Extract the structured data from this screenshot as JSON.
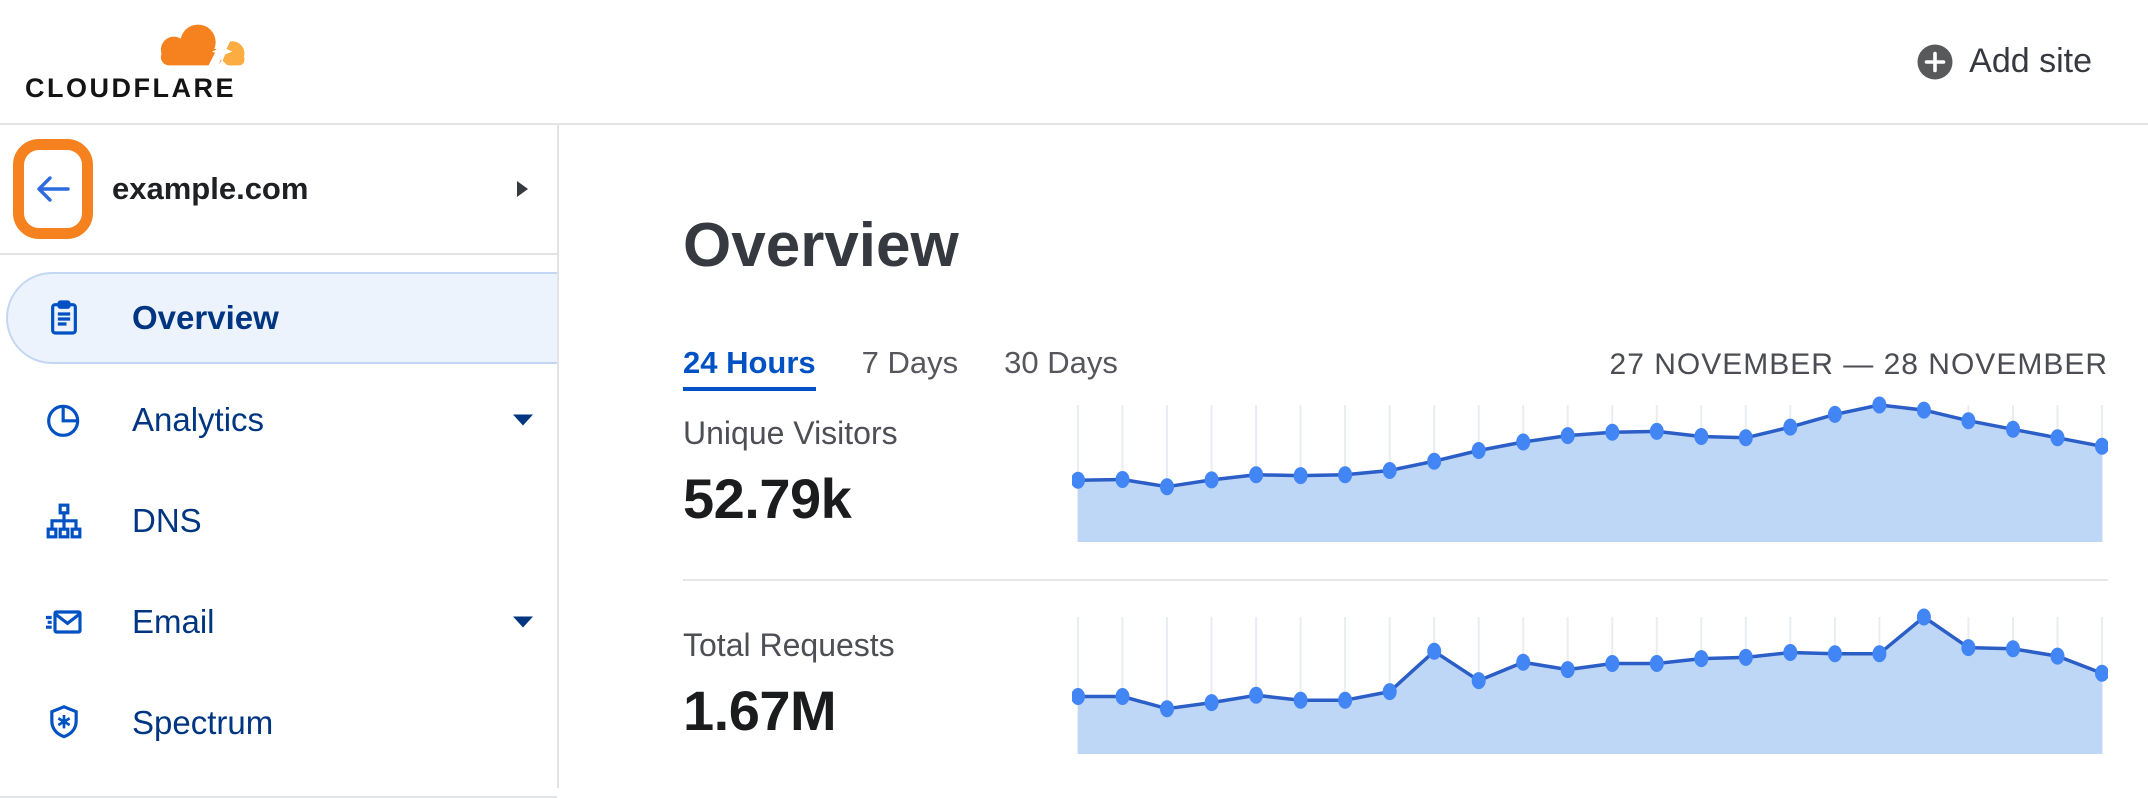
{
  "brand": {
    "name": "CLOUDFLARE",
    "colors": {
      "cloud_main": "#f6821f",
      "cloud_light": "#fbad41"
    }
  },
  "topbar": {
    "add_site_label": "Add site"
  },
  "sidebar": {
    "site": {
      "name": "example.com"
    },
    "items": [
      {
        "label": "Overview",
        "icon": "clipboard-icon",
        "selected": true,
        "has_caret": false
      },
      {
        "label": "Analytics",
        "icon": "pie-chart-icon",
        "selected": false,
        "has_caret": true
      },
      {
        "label": "DNS",
        "icon": "dns-tree-icon",
        "selected": false,
        "has_caret": false
      },
      {
        "label": "Email",
        "icon": "email-icon",
        "selected": false,
        "has_caret": true
      },
      {
        "label": "Spectrum",
        "icon": "shield-icon",
        "selected": false,
        "has_caret": false
      }
    ],
    "annotation": {
      "shape": "rounded-rect-highlight",
      "color": "#f6821f",
      "target": "back-button"
    }
  },
  "main": {
    "title": "Overview",
    "tabs": [
      {
        "label": "24 Hours",
        "active": true
      },
      {
        "label": "7 Days",
        "active": false
      },
      {
        "label": "30 Days",
        "active": false
      }
    ],
    "date_range": "27 NOVEMBER — 28 NOVEMBER",
    "metrics": [
      {
        "label": "Unique Visitors",
        "value": "52.79k"
      },
      {
        "label": "Total Requests",
        "value": "1.67M"
      }
    ]
  },
  "colors": {
    "accent_blue": "#0051c3",
    "navy": "#003681",
    "orange": "#f6821f",
    "orange_light": "#fbad41",
    "chart_line": "#2b5ec6",
    "chart_dot": "#4285f4",
    "chart_fill": "#bed7f7",
    "gridline": "#e9ecf1",
    "text_dark": "#36393f",
    "text_gray": "#56575c"
  },
  "chart_data": [
    {
      "type": "area",
      "title": "Unique Visitors",
      "total_label": "52.79k",
      "period": "24 Hours",
      "date_range": "27 NOVEMBER — 28 NOVEMBER",
      "x_unit": "hour",
      "x": [
        0,
        1,
        2,
        3,
        4,
        5,
        6,
        7,
        8,
        9,
        10,
        11,
        12,
        13,
        14,
        15,
        16,
        17,
        18,
        19,
        20,
        21,
        22,
        23
      ],
      "values": [
        1450,
        1470,
        1300,
        1460,
        1580,
        1560,
        1580,
        1680,
        1900,
        2150,
        2350,
        2500,
        2580,
        2600,
        2480,
        2450,
        2700,
        3000,
        3220,
        3100,
        2850,
        2650,
        2450,
        2250
      ],
      "values_note": "estimated hourly unique visitors read from unlabeled sparkline; sum ≈ 52.79k",
      "ylim": [
        0,
        3500
      ],
      "grid": "vertical-only",
      "legend": "none",
      "markers": "dots"
    },
    {
      "type": "area",
      "title": "Total Requests",
      "total_label": "1.67M",
      "period": "24 Hours",
      "date_range": "27 NOVEMBER — 28 NOVEMBER",
      "x_unit": "hour",
      "x": [
        0,
        1,
        2,
        3,
        4,
        5,
        6,
        7,
        8,
        9,
        10,
        11,
        12,
        13,
        14,
        15,
        16,
        17,
        18,
        19,
        20,
        21,
        22,
        23
      ],
      "values": [
        47000,
        47000,
        37000,
        42000,
        48000,
        44000,
        44000,
        51000,
        84000,
        60000,
        75000,
        69000,
        74000,
        74000,
        78000,
        79000,
        83000,
        82000,
        82000,
        112000,
        87000,
        86000,
        80000,
        66000
      ],
      "values_note": "estimated hourly requests read from unlabeled sparkline; sum ≈ 1.67M",
      "ylim": [
        0,
        120000
      ],
      "grid": "vertical-only",
      "legend": "none",
      "markers": "dots"
    }
  ]
}
